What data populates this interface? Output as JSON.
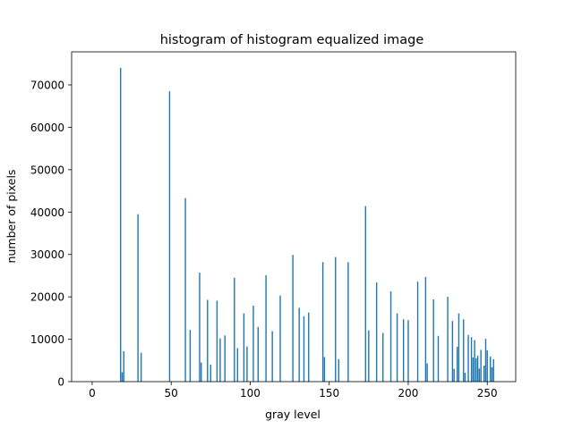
{
  "chart_data": {
    "type": "bar",
    "title": "histogram of histogram equalized image",
    "xlabel": "gray level",
    "ylabel": "number of pixels",
    "xlim": [
      -13,
      268
    ],
    "ylim": [
      0,
      77800
    ],
    "xticks": [
      0,
      50,
      100,
      150,
      200,
      250
    ],
    "yticks": [
      0,
      10000,
      20000,
      30000,
      40000,
      50000,
      60000,
      70000
    ],
    "grid": false,
    "bar_color": "#1f77b4",
    "x": [
      18,
      19,
      20,
      29,
      31,
      49,
      59,
      62,
      68,
      69,
      73,
      75,
      79,
      81,
      84,
      90,
      92,
      96,
      98,
      102,
      105,
      110,
      114,
      119,
      127,
      131,
      134,
      137,
      146,
      147,
      154,
      156,
      162,
      173,
      175,
      180,
      184,
      189,
      193,
      197,
      200,
      206,
      211,
      212,
      216,
      219,
      225,
      228,
      229,
      231,
      232,
      235,
      236,
      238,
      240,
      241,
      242,
      243,
      244,
      245,
      246,
      248,
      249,
      250,
      252,
      253,
      254
    ],
    "values": [
      74000,
      2200,
      7200,
      39500,
      6800,
      68500,
      43300,
      12200,
      25700,
      4500,
      19300,
      4000,
      19100,
      10200,
      10900,
      24500,
      7900,
      16100,
      8300,
      17900,
      12900,
      25100,
      11900,
      20300,
      29900,
      17400,
      15400,
      16300,
      28200,
      5800,
      29400,
      5300,
      28200,
      41400,
      12100,
      23400,
      11500,
      21300,
      16100,
      14700,
      14500,
      23600,
      24700,
      4300,
      19400,
      10800,
      20000,
      14300,
      3000,
      8200,
      16100,
      14700,
      2100,
      11000,
      10500,
      5700,
      9800,
      5500,
      6100,
      3100,
      7500,
      3800,
      10100,
      7400,
      5900,
      3400,
      5300
    ]
  }
}
